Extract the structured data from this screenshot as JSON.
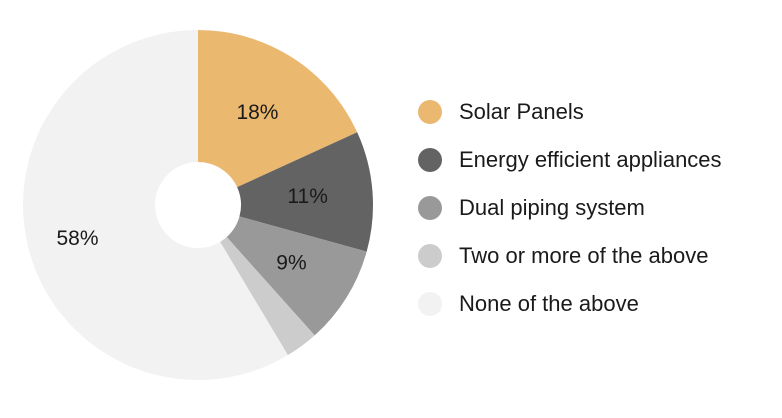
{
  "chart_data": {
    "type": "pie",
    "donut": true,
    "labels": [
      "Solar Panels",
      "Energy efficient appliances",
      "Dual piping system",
      "Two or more of the above",
      "None of the above"
    ],
    "values": [
      18,
      11,
      9,
      3,
      58
    ],
    "value_labels": [
      "18%",
      "11%",
      "9%",
      "",
      "58%"
    ],
    "colors": [
      "#ebb870",
      "#636363",
      "#999999",
      "#cccccc",
      "#f2f2f2"
    ],
    "legend_position": "right"
  }
}
